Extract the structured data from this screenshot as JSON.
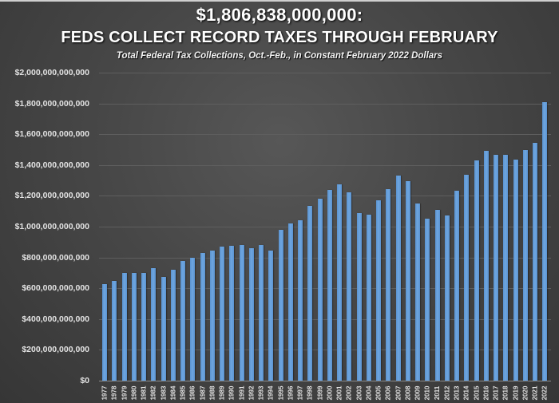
{
  "header": {
    "headline": "$1,806,838,000,000:",
    "title": "FEDS COLLECT RECORD TAXES THROUGH FEBRUARY",
    "subtitle": "Total Federal Tax Collections, Oct.-Feb., in Constant February 2022 Dollars"
  },
  "colors": {
    "bar": "#6a9fdc",
    "background": "#474747",
    "gridline": "#5e5e5e",
    "text": "#e2e2e2"
  },
  "chart_data": {
    "type": "bar",
    "title": "$1,806,838,000,000: FEDS COLLECT RECORD TAXES THROUGH FEBRUARY",
    "subtitle": "Total Federal Tax Collections, Oct.-Feb., in Constant February 2022 Dollars",
    "xlabel": "",
    "ylabel": "",
    "ylim": [
      0,
      2000000000000
    ],
    "grid": true,
    "legend": "none",
    "y_ticks": [
      {
        "value": 0,
        "label": "$0"
      },
      {
        "value": 200000000000,
        "label": "$200,000,000,000"
      },
      {
        "value": 400000000000,
        "label": "$400,000,000,000"
      },
      {
        "value": 600000000000,
        "label": "$600,000,000,000"
      },
      {
        "value": 800000000000,
        "label": "$800,000,000,000"
      },
      {
        "value": 1000000000000,
        "label": "$1,000,000,000,000"
      },
      {
        "value": 1200000000000,
        "label": "$1,200,000,000,000"
      },
      {
        "value": 1400000000000,
        "label": "$1,400,000,000,000"
      },
      {
        "value": 1600000000000,
        "label": "$1,600,000,000,000"
      },
      {
        "value": 1800000000000,
        "label": "$1,800,000,000,000"
      },
      {
        "value": 2000000000000,
        "label": "$2,000,000,000,000"
      }
    ],
    "categories": [
      "1977",
      "1978",
      "1979",
      "1980",
      "1981",
      "1982",
      "1983",
      "1984",
      "1985",
      "1986",
      "1987",
      "1988",
      "1989",
      "1990",
      "1991",
      "1992",
      "1993",
      "1994",
      "1995",
      "1996",
      "1997",
      "1998",
      "1999",
      "2000",
      "2001",
      "2002",
      "2003",
      "2004",
      "2005",
      "2006",
      "2007",
      "2008",
      "2009",
      "2010",
      "2011",
      "2012",
      "2013",
      "2014",
      "2015",
      "2016",
      "2017",
      "2018",
      "2019",
      "2020",
      "2021",
      "2022"
    ],
    "values": [
      625000000000,
      650000000000,
      700000000000,
      700000000000,
      700000000000,
      730000000000,
      675000000000,
      720000000000,
      775000000000,
      800000000000,
      830000000000,
      845000000000,
      870000000000,
      875000000000,
      880000000000,
      860000000000,
      880000000000,
      845000000000,
      980000000000,
      1020000000000,
      1040000000000,
      1135000000000,
      1180000000000,
      1240000000000,
      1275000000000,
      1225000000000,
      1090000000000,
      1080000000000,
      1170000000000,
      1245000000000,
      1330000000000,
      1295000000000,
      1150000000000,
      1050000000000,
      1110000000000,
      1075000000000,
      1235000000000,
      1335000000000,
      1430000000000,
      1490000000000,
      1465000000000,
      1465000000000,
      1435000000000,
      1495000000000,
      1545000000000,
      1806838000000
    ]
  }
}
